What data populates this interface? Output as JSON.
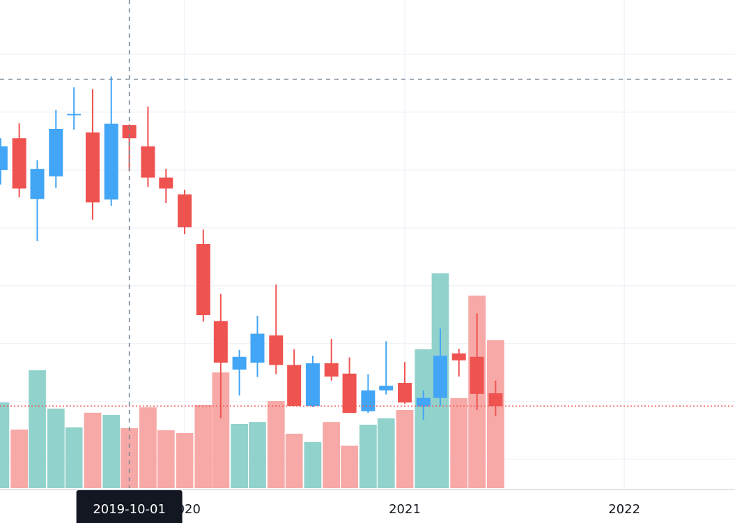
{
  "chart_data": {
    "type": "candlestick",
    "x": [
      "2019-03-01",
      "2019-04-01",
      "2019-05-01",
      "2019-06-01",
      "2019-07-01",
      "2019-08-01",
      "2019-09-01",
      "2019-10-01",
      "2019-11-01",
      "2019-12-01",
      "2020-01-01",
      "2020-02-01",
      "2020-03-01",
      "2020-04-01",
      "2020-05-01",
      "2020-06-01",
      "2020-07-01",
      "2020-08-01",
      "2020-09-01",
      "2020-10-01",
      "2020-11-01",
      "2020-12-01",
      "2021-01-01",
      "2021-02-01",
      "2021-03-01",
      "2021-04-01",
      "2021-05-01",
      "2021-06-01"
    ],
    "open": [
      50.0,
      55.5,
      45.0,
      48.9,
      59.5,
      56.5,
      44.9,
      57.8,
      54.1,
      48.7,
      45.8,
      37.2,
      23.9,
      15.5,
      16.7,
      21.4,
      16.3,
      9.2,
      16.6,
      14.8,
      8.3,
      11.9,
      13.2,
      9.1,
      10.6,
      18.3,
      17.7,
      11.4
    ],
    "high": [
      55.5,
      58.1,
      51.7,
      60.4,
      64.3,
      64.0,
      66.2,
      57.9,
      61.0,
      50.2,
      46.6,
      39.7,
      28.6,
      18.9,
      24.8,
      30.2,
      19.0,
      17.9,
      20.8,
      17.6,
      14.7,
      20.4,
      16.8,
      11.9,
      22.6,
      19.1,
      25.2,
      13.6
    ],
    "low": [
      47.5,
      45.3,
      37.7,
      46.9,
      57.0,
      41.4,
      43.8,
      49.9,
      47.1,
      44.3,
      38.9,
      23.8,
      7.1,
      11.0,
      14.2,
      14.7,
      9.2,
      9.0,
      13.6,
      8.0,
      8.0,
      11.2,
      9.6,
      6.8,
      9.2,
      14.3,
      8.5,
      7.5
    ],
    "close": [
      54.1,
      46.8,
      50.2,
      57.1,
      59.7,
      44.4,
      58.0,
      55.5,
      48.7,
      46.8,
      40.1,
      24.9,
      16.7,
      17.7,
      21.7,
      16.3,
      9.2,
      16.6,
      14.3,
      8.0,
      11.9,
      12.7,
      9.8,
      10.6,
      17.9,
      17.1,
      11.3,
      9.2
    ],
    "volume": [
      35.1,
      24.0,
      48.3,
      32.6,
      24.9,
      30.9,
      30.0,
      24.6,
      33.1,
      23.7,
      22.6,
      34.0,
      47.4,
      26.3,
      27.1,
      35.7,
      22.3,
      18.9,
      27.1,
      17.4,
      26.0,
      28.6,
      32.0,
      56.9,
      88.0,
      36.9,
      78.9,
      60.6
    ],
    "up_color": "#42a5f5",
    "down_color": "#ef5350",
    "volume_up_color": "#92d2cc",
    "volume_down_color": "#f7a9a7",
    "xlim": [
      "2019-02-28",
      "2022-07-04"
    ],
    "xticks": [
      {
        "value": "2020-01-01",
        "label": "2020"
      },
      {
        "value": "2021-01-01",
        "label": "2021"
      },
      {
        "value": "2022-01-01",
        "label": "2022"
      }
    ],
    "ylim": [
      -5,
      79.4
    ],
    "yticks": [
      0,
      10,
      20,
      30,
      40,
      50,
      60,
      70
    ],
    "volume_lim": [
      0,
      200
    ],
    "grid": true,
    "crosshair": {
      "x": "2019-10-01",
      "y": 65.7
    }
  }
}
